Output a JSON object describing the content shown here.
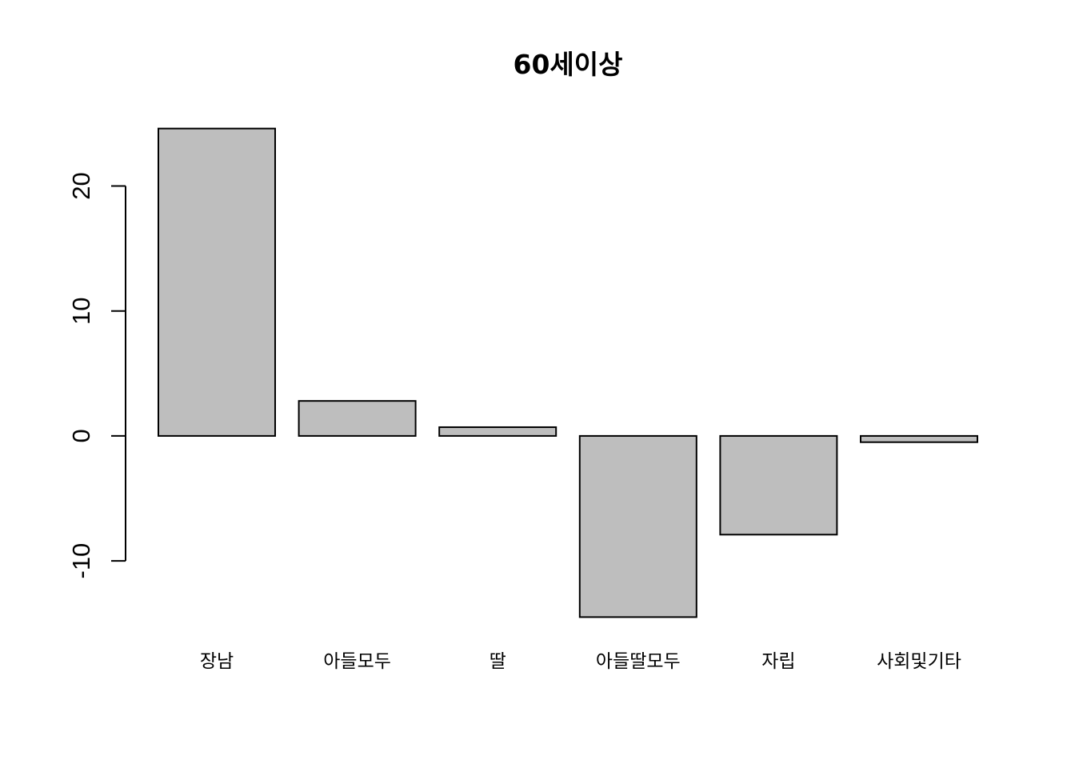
{
  "chart_data": {
    "type": "bar",
    "title": "60세이상",
    "xlabel": "",
    "ylabel": "",
    "categories": [
      "장남",
      "아들모두",
      "딸",
      "아들딸모두",
      "자립",
      "사회및기타"
    ],
    "values": [
      24.6,
      2.8,
      0.7,
      -14.5,
      -7.9,
      -0.5
    ],
    "ylim": [
      -15.5,
      26.5
    ],
    "yticks": [
      -10,
      0,
      10,
      20
    ],
    "ytick_labels": [
      "-10",
      "0",
      "10",
      "20"
    ],
    "bar_color": "#bebebe",
    "bar_border_color": "#000000",
    "grid": false,
    "legend": "none"
  }
}
